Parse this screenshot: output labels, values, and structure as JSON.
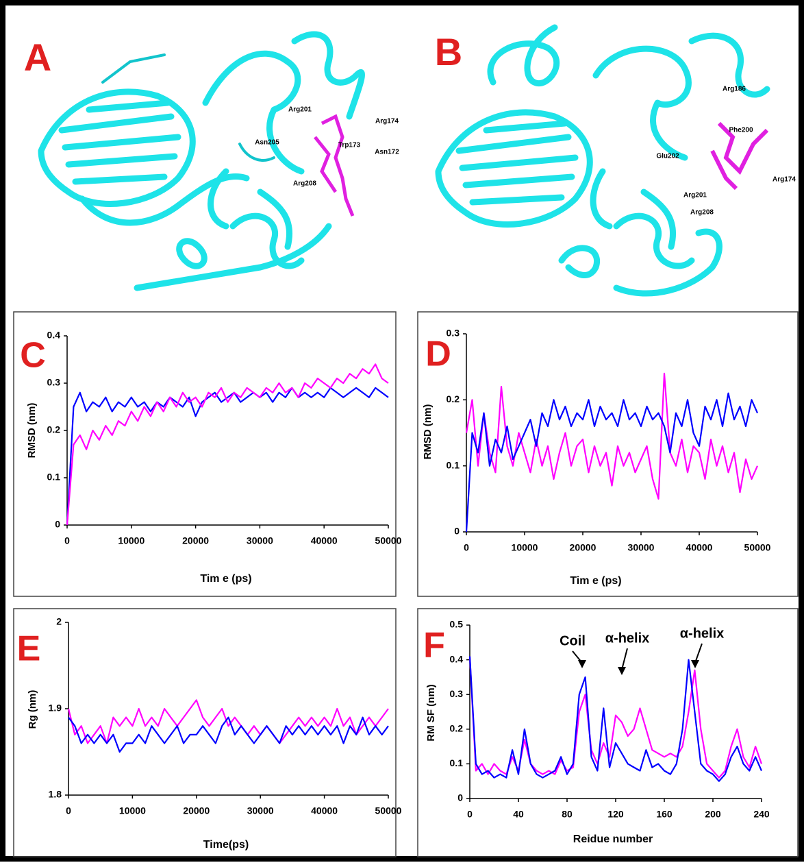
{
  "structures": [
    {
      "label": "A",
      "residues": [
        "Arg201",
        "Arg174",
        "Asn205",
        "Trp173",
        "Asn172",
        "Arg208"
      ]
    },
    {
      "label": "B",
      "residues": [
        "Arg186",
        "Phe200",
        "Glu202",
        "Arg174",
        "Arg201",
        "Arg208"
      ]
    }
  ],
  "chart_data": [
    {
      "type": "line",
      "panel_label": "C",
      "x_label": "Tim e (ps)",
      "y_label": "RMSD (nm)",
      "x": [
        0,
        1000,
        2000,
        3000,
        4000,
        5000,
        6000,
        7000,
        8000,
        9000,
        10000,
        11000,
        12000,
        13000,
        14000,
        15000,
        16000,
        17000,
        18000,
        19000,
        20000,
        21000,
        22000,
        23000,
        24000,
        25000,
        26000,
        27000,
        28000,
        29000,
        30000,
        31000,
        32000,
        33000,
        34000,
        35000,
        36000,
        37000,
        38000,
        39000,
        40000,
        41000,
        42000,
        43000,
        44000,
        45000,
        46000,
        47000,
        48000,
        49000,
        50000
      ],
      "series": [
        {
          "color": "#0000ff",
          "values": [
            0,
            0.25,
            0.28,
            0.24,
            0.26,
            0.25,
            0.27,
            0.24,
            0.26,
            0.25,
            0.27,
            0.25,
            0.26,
            0.24,
            0.26,
            0.25,
            0.27,
            0.26,
            0.25,
            0.27,
            0.23,
            0.26,
            0.27,
            0.28,
            0.26,
            0.27,
            0.28,
            0.26,
            0.27,
            0.28,
            0.27,
            0.28,
            0.26,
            0.28,
            0.27,
            0.29,
            0.27,
            0.28,
            0.27,
            0.28,
            0.27,
            0.29,
            0.28,
            0.27,
            0.28,
            0.29,
            0.28,
            0.27,
            0.29,
            0.28,
            0.27
          ]
        },
        {
          "color": "#ff00ff",
          "values": [
            0,
            0.17,
            0.19,
            0.16,
            0.2,
            0.18,
            0.21,
            0.19,
            0.22,
            0.21,
            0.24,
            0.22,
            0.25,
            0.23,
            0.26,
            0.24,
            0.27,
            0.25,
            0.28,
            0.26,
            0.27,
            0.25,
            0.28,
            0.27,
            0.29,
            0.26,
            0.28,
            0.27,
            0.29,
            0.28,
            0.27,
            0.29,
            0.28,
            0.3,
            0.28,
            0.29,
            0.27,
            0.3,
            0.29,
            0.31,
            0.3,
            0.29,
            0.31,
            0.3,
            0.32,
            0.31,
            0.33,
            0.32,
            0.34,
            0.31,
            0.3
          ]
        }
      ],
      "xlim": [
        0,
        50000
      ],
      "xticks": [
        0,
        10000,
        20000,
        30000,
        40000,
        50000
      ],
      "ylim": [
        0,
        0.4
      ],
      "yticks": [
        0,
        0.1,
        0.2,
        0.3,
        0.4
      ]
    },
    {
      "type": "line",
      "panel_label": "D",
      "x_label": "Tim e (ps)",
      "y_label": "RMSD (nm)",
      "x": [
        0,
        1000,
        2000,
        3000,
        4000,
        5000,
        6000,
        7000,
        8000,
        9000,
        10000,
        11000,
        12000,
        13000,
        14000,
        15000,
        16000,
        17000,
        18000,
        19000,
        20000,
        21000,
        22000,
        23000,
        24000,
        25000,
        26000,
        27000,
        28000,
        29000,
        30000,
        31000,
        32000,
        33000,
        34000,
        35000,
        36000,
        37000,
        38000,
        39000,
        40000,
        41000,
        42000,
        43000,
        44000,
        45000,
        46000,
        47000,
        48000,
        49000,
        50000
      ],
      "series": [
        {
          "color": "#ff00ff",
          "values": [
            0.15,
            0.2,
            0.1,
            0.18,
            0.12,
            0.09,
            0.22,
            0.13,
            0.1,
            0.15,
            0.12,
            0.09,
            0.14,
            0.1,
            0.13,
            0.08,
            0.12,
            0.15,
            0.1,
            0.13,
            0.14,
            0.09,
            0.13,
            0.1,
            0.12,
            0.07,
            0.13,
            0.1,
            0.12,
            0.09,
            0.11,
            0.13,
            0.08,
            0.05,
            0.24,
            0.12,
            0.1,
            0.14,
            0.09,
            0.13,
            0.12,
            0.08,
            0.14,
            0.1,
            0.13,
            0.09,
            0.12,
            0.06,
            0.11,
            0.08,
            0.1
          ]
        },
        {
          "color": "#0000ff",
          "values": [
            0,
            0.15,
            0.12,
            0.18,
            0.1,
            0.14,
            0.12,
            0.16,
            0.11,
            0.13,
            0.15,
            0.17,
            0.13,
            0.18,
            0.16,
            0.2,
            0.17,
            0.19,
            0.16,
            0.18,
            0.17,
            0.2,
            0.16,
            0.19,
            0.17,
            0.18,
            0.16,
            0.2,
            0.17,
            0.18,
            0.16,
            0.19,
            0.17,
            0.18,
            0.16,
            0.12,
            0.18,
            0.16,
            0.2,
            0.15,
            0.13,
            0.19,
            0.17,
            0.2,
            0.16,
            0.21,
            0.17,
            0.19,
            0.16,
            0.2,
            0.18
          ]
        }
      ],
      "xlim": [
        0,
        50000
      ],
      "xticks": [
        0,
        10000,
        20000,
        30000,
        40000,
        50000
      ],
      "ylim": [
        0,
        0.3
      ],
      "yticks": [
        0,
        0.1,
        0.2,
        0.3
      ]
    },
    {
      "type": "line",
      "panel_label": "E",
      "x_label": "Time(ps)",
      "y_label": "Rg (nm)",
      "x": [
        0,
        1000,
        2000,
        3000,
        4000,
        5000,
        6000,
        7000,
        8000,
        9000,
        10000,
        11000,
        12000,
        13000,
        14000,
        15000,
        16000,
        17000,
        18000,
        19000,
        20000,
        21000,
        22000,
        23000,
        24000,
        25000,
        26000,
        27000,
        28000,
        29000,
        30000,
        31000,
        32000,
        33000,
        34000,
        35000,
        36000,
        37000,
        38000,
        39000,
        40000,
        41000,
        42000,
        43000,
        44000,
        45000,
        46000,
        47000,
        48000,
        49000,
        50000
      ],
      "series": [
        {
          "color": "#ff00ff",
          "values": [
            1.9,
            1.87,
            1.88,
            1.86,
            1.87,
            1.88,
            1.86,
            1.89,
            1.88,
            1.89,
            1.88,
            1.9,
            1.88,
            1.89,
            1.88,
            1.9,
            1.89,
            1.88,
            1.89,
            1.9,
            1.91,
            1.89,
            1.88,
            1.89,
            1.9,
            1.88,
            1.89,
            1.88,
            1.87,
            1.88,
            1.87,
            1.88,
            1.87,
            1.86,
            1.87,
            1.88,
            1.89,
            1.88,
            1.89,
            1.88,
            1.89,
            1.88,
            1.9,
            1.88,
            1.89,
            1.87,
            1.88,
            1.89,
            1.88,
            1.89,
            1.9
          ]
        },
        {
          "color": "#0000ff",
          "values": [
            1.89,
            1.88,
            1.86,
            1.87,
            1.86,
            1.87,
            1.86,
            1.87,
            1.85,
            1.86,
            1.86,
            1.87,
            1.86,
            1.88,
            1.87,
            1.86,
            1.87,
            1.88,
            1.86,
            1.87,
            1.87,
            1.88,
            1.87,
            1.86,
            1.88,
            1.89,
            1.87,
            1.88,
            1.87,
            1.86,
            1.87,
            1.88,
            1.87,
            1.86,
            1.88,
            1.87,
            1.88,
            1.87,
            1.88,
            1.87,
            1.88,
            1.87,
            1.88,
            1.86,
            1.88,
            1.87,
            1.89,
            1.87,
            1.88,
            1.87,
            1.88
          ]
        }
      ],
      "xlim": [
        0,
        50000
      ],
      "xticks": [
        0,
        10000,
        20000,
        30000,
        40000,
        50000
      ],
      "ylim": [
        1.8,
        2
      ],
      "yticks": [
        1.8,
        1.9,
        2
      ]
    },
    {
      "type": "line",
      "panel_label": "F",
      "x_label": "Reidue number",
      "y_label": "RM SF (nm)",
      "x": [
        0,
        5,
        10,
        15,
        20,
        25,
        30,
        35,
        40,
        45,
        50,
        55,
        60,
        65,
        70,
        75,
        80,
        85,
        90,
        95,
        100,
        105,
        110,
        115,
        120,
        125,
        130,
        135,
        140,
        145,
        150,
        155,
        160,
        165,
        170,
        175,
        180,
        185,
        190,
        195,
        200,
        205,
        210,
        215,
        220,
        225,
        230,
        235,
        240
      ],
      "series": [
        {
          "color": "#ff00ff",
          "values": [
            0.41,
            0.08,
            0.1,
            0.07,
            0.1,
            0.08,
            0.07,
            0.12,
            0.08,
            0.17,
            0.1,
            0.08,
            0.07,
            0.08,
            0.07,
            0.11,
            0.08,
            0.09,
            0.25,
            0.3,
            0.14,
            0.1,
            0.16,
            0.12,
            0.24,
            0.22,
            0.18,
            0.2,
            0.26,
            0.2,
            0.14,
            0.13,
            0.12,
            0.13,
            0.12,
            0.15,
            0.25,
            0.37,
            0.2,
            0.1,
            0.08,
            0.06,
            0.08,
            0.15,
            0.2,
            0.12,
            0.09,
            0.15,
            0.1
          ]
        },
        {
          "color": "#0000ff",
          "values": [
            0.41,
            0.1,
            0.07,
            0.08,
            0.06,
            0.07,
            0.06,
            0.14,
            0.07,
            0.2,
            0.1,
            0.07,
            0.06,
            0.07,
            0.08,
            0.12,
            0.07,
            0.1,
            0.3,
            0.35,
            0.12,
            0.08,
            0.26,
            0.09,
            0.16,
            0.13,
            0.1,
            0.09,
            0.08,
            0.14,
            0.09,
            0.1,
            0.08,
            0.07,
            0.1,
            0.2,
            0.4,
            0.25,
            0.1,
            0.08,
            0.07,
            0.05,
            0.07,
            0.12,
            0.15,
            0.1,
            0.08,
            0.12,
            0.08
          ]
        }
      ],
      "annotations": [
        {
          "text": "Coil"
        },
        {
          "text": "α-helix"
        },
        {
          "text": "α-helix"
        }
      ],
      "xlim": [
        0,
        240
      ],
      "xticks": [
        0,
        40,
        80,
        120,
        160,
        200,
        240
      ],
      "ylim": [
        0,
        0.5
      ],
      "yticks": [
        0,
        0.1,
        0.2,
        0.3,
        0.4,
        0.5
      ]
    }
  ]
}
